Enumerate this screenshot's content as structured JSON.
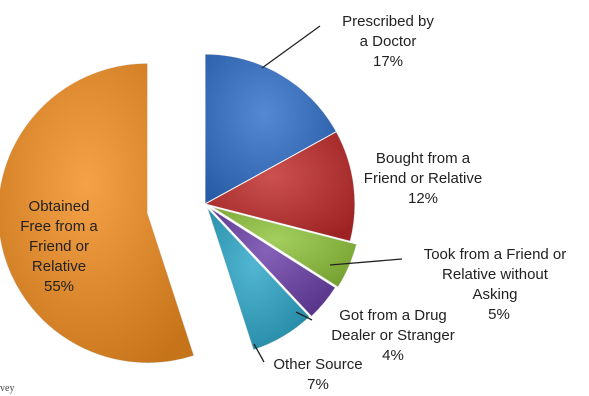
{
  "chart_data": {
    "type": "pie",
    "title": "",
    "slices": [
      {
        "label_lines": [
          "Prescribed by",
          "a Doctor"
        ],
        "pct_label": "17%",
        "value": 17,
        "color": "#2f6fc9"
      },
      {
        "label_lines": [
          "Bought from a",
          "Friend or Relative"
        ],
        "pct_label": "12%",
        "value": 12,
        "color": "#c02a2a"
      },
      {
        "label_lines": [
          "Took from a Friend or",
          "Relative without",
          "Asking"
        ],
        "pct_label": "5%",
        "value": 5,
        "color": "#8fc43a"
      },
      {
        "label_lines": [
          "Got from a Drug",
          "Dealer or Stranger"
        ],
        "pct_label": "4%",
        "value": 4,
        "color": "#6a3fa8"
      },
      {
        "label_lines": [
          "Other Source"
        ],
        "pct_label": "7%",
        "value": 7,
        "color": "#2ba6c8"
      },
      {
        "label_lines": [
          "Obtained",
          "Free from a",
          "Friend or",
          "Relative"
        ],
        "pct_label": "55%",
        "value": 55,
        "color": "#f28d1f"
      }
    ]
  },
  "footer_fragment": "vey"
}
